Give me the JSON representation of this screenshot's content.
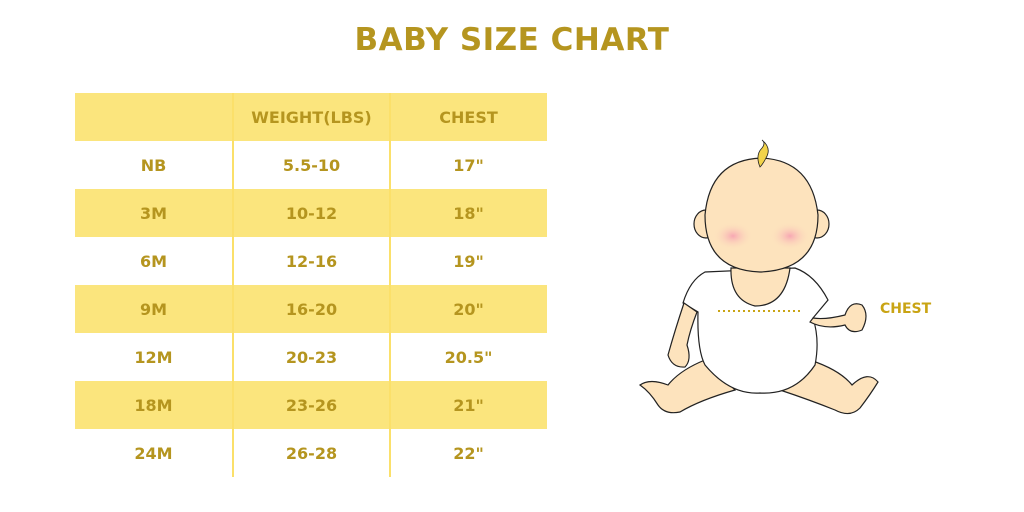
{
  "title": "BABY SIZE CHART",
  "table": {
    "headers": [
      "",
      "WEIGHT(LBS)",
      "CHEST"
    ],
    "rows": [
      [
        "NB",
        "5.5-10",
        "17\""
      ],
      [
        "3M",
        "10-12",
        "18\""
      ],
      [
        "6M",
        "12-16",
        "19\""
      ],
      [
        "9M",
        "16-20",
        "20\""
      ],
      [
        "12M",
        "20-23",
        "20.5\""
      ],
      [
        "18M",
        "23-26",
        "21\""
      ],
      [
        "24M",
        "26-28",
        "22\""
      ]
    ]
  },
  "illustration": {
    "chest_label": "CHEST"
  },
  "colors": {
    "accent": "#b5951f",
    "band": "#fbe57d",
    "skin": "#fde3bd"
  }
}
